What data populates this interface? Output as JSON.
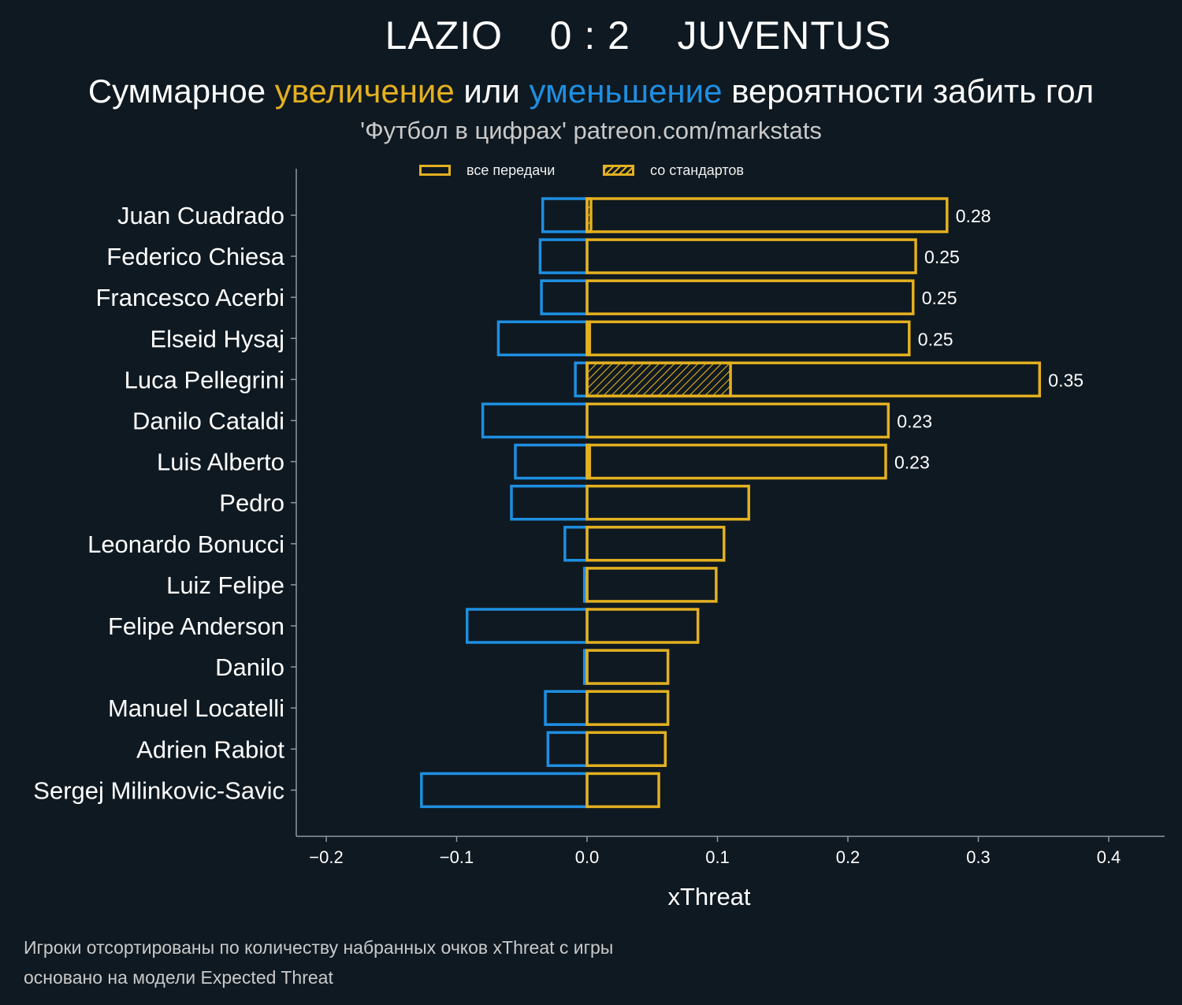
{
  "title": "LAZIO    0 : 2    JUVENTUS",
  "subtitle": {
    "part1": "Суммарное ",
    "increase": "увеличение",
    "part2": " или ",
    "decrease": "уменьшение",
    "part3": " вероятности забить гол"
  },
  "source": "'Футбол в цифрах' patreon.com/markstats",
  "legend": {
    "all_passes": "все передачи",
    "set_pieces": "со стандартов"
  },
  "footnotes": [
    "Игроки отсортированы по количеству набранных очков xThreat с игры",
    "основано на модели Expected Threat"
  ],
  "colors": {
    "background": "#0f1921",
    "positive": "#e3b020",
    "negative": "#1e8fe1",
    "axis": "#8a9aa3"
  },
  "chart_data": {
    "type": "bar",
    "orientation": "horizontal",
    "xlabel": "xThreat",
    "xlim": [
      -0.22,
      0.44
    ],
    "xticks": [
      -0.2,
      -0.1,
      0.0,
      0.1,
      0.2,
      0.3,
      0.4
    ],
    "xtick_labels": [
      "−0.2",
      "−0.1",
      "0.0",
      "0.1",
      "0.2",
      "0.3",
      "0.4"
    ],
    "grid": false,
    "legend_position": "top",
    "categories": [
      "Juan Cuadrado",
      "Federico Chiesa",
      "Francesco Acerbi",
      "Elseid Hysaj",
      "Luca Pellegrini",
      "Danilo Cataldi",
      "Luis Alberto",
      "Pedro",
      "Leonardo Bonucci",
      "Luiz Felipe",
      "Felipe Anderson",
      "Danilo",
      "Manuel Locatelli",
      "Adrien Rabiot",
      "Sergej Milinkovic-Savic"
    ],
    "series": [
      {
        "name": "все передачи",
        "positive": [
          0.276,
          0.252,
          0.25,
          0.247,
          0.347,
          0.231,
          0.229,
          0.124,
          0.105,
          0.099,
          0.085,
          0.062,
          0.062,
          0.06,
          0.055
        ],
        "negative": [
          -0.034,
          -0.036,
          -0.035,
          -0.068,
          -0.009,
          -0.08,
          -0.055,
          -0.058,
          -0.017,
          -0.002,
          -0.092,
          -0.002,
          -0.032,
          -0.03,
          -0.127
        ]
      },
      {
        "name": "со стандартов",
        "positive": [
          0.003,
          0,
          0,
          0.002,
          0.11,
          0,
          0.002,
          0,
          0,
          0,
          0,
          0,
          0,
          0,
          0
        ],
        "negative": [
          0,
          0,
          0,
          0,
          0,
          0,
          0,
          0,
          0,
          0,
          0,
          0,
          0,
          0,
          0
        ]
      }
    ],
    "data_labels": [
      "0.28",
      "0.25",
      "0.25",
      "0.25",
      "0.35",
      "0.23",
      "0.23",
      "",
      "",
      "",
      "",
      "",
      "",
      "",
      ""
    ]
  }
}
